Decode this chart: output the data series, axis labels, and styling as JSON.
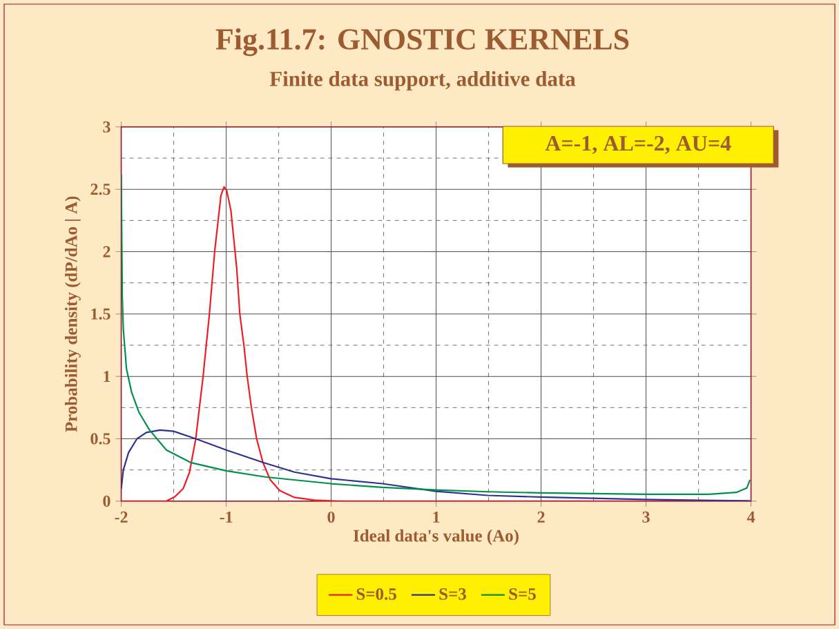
{
  "chart_data": {
    "type": "line",
    "title": "Fig.11.7: GNOSTIC KERNELS",
    "subtitle": "Finite data support, additive data",
    "xlabel": "Ideal data's value (Ao)",
    "ylabel": "Probability density (dP/dAo | A)",
    "annotations": [
      "A=-1, AL=-2, AU=4"
    ],
    "xlim": [
      -2,
      4
    ],
    "ylim": [
      0,
      3
    ],
    "xticks": [
      -2,
      -1,
      0,
      1,
      2,
      3,
      4
    ],
    "yticks": [
      0,
      0.5,
      1,
      1.5,
      2,
      2.5,
      3
    ],
    "grid": true,
    "legend": "bottom",
    "marker": "none",
    "line_style": "solid",
    "series": [
      {
        "name": "S=0.5",
        "color": "#ee1c25",
        "x": [
          -2,
          -1.57,
          -1.49,
          -1.41,
          -1.35,
          -1.29,
          -1.22,
          -1.16,
          -1.11,
          -1.05,
          -1.02,
          -0.995,
          -0.955,
          -0.9,
          -0.87,
          -0.83,
          -0.8,
          -0.76,
          -0.71,
          -0.65,
          -0.58,
          -0.49,
          -0.35,
          -0.16,
          0.07,
          1,
          2,
          3,
          4
        ],
        "values": [
          0,
          0,
          0.035,
          0.1,
          0.23,
          0.5,
          1.0,
          1.5,
          2.0,
          2.45,
          2.52,
          2.49,
          2.33,
          1.87,
          1.5,
          1.24,
          1.0,
          0.75,
          0.5,
          0.31,
          0.17,
          0.085,
          0.03,
          0.008,
          0,
          0,
          0,
          0,
          0
        ]
      },
      {
        "name": "S=3",
        "color": "#2e3192",
        "x": [
          -2,
          -1.98,
          -1.93,
          -1.85,
          -1.76,
          -1.63,
          -1.5,
          -1.29,
          -1,
          -0.65,
          -0.35,
          0,
          0.49,
          1,
          1.49,
          1.99,
          2.98,
          3.97,
          4
        ],
        "values": [
          0.1,
          0.25,
          0.39,
          0.5,
          0.55,
          0.57,
          0.56,
          0.5,
          0.41,
          0.31,
          0.233,
          0.18,
          0.14,
          0.079,
          0.046,
          0.033,
          0.013,
          0.002,
          0
        ]
      },
      {
        "name": "S=5",
        "color": "#008f4c",
        "x": [
          -2,
          -1.99,
          -1.98,
          -1.95,
          -1.9,
          -1.83,
          -1.73,
          -1.57,
          -1.34,
          -1,
          -0.63,
          0,
          0.49,
          1,
          1.5,
          2,
          3,
          3.6,
          3.86,
          3.96,
          3.99
        ],
        "values": [
          2.62,
          1.64,
          1.38,
          1.06,
          0.87,
          0.71,
          0.57,
          0.41,
          0.31,
          0.243,
          0.194,
          0.14,
          0.11,
          0.09,
          0.075,
          0.066,
          0.055,
          0.055,
          0.07,
          0.105,
          0.17
        ]
      }
    ]
  }
}
